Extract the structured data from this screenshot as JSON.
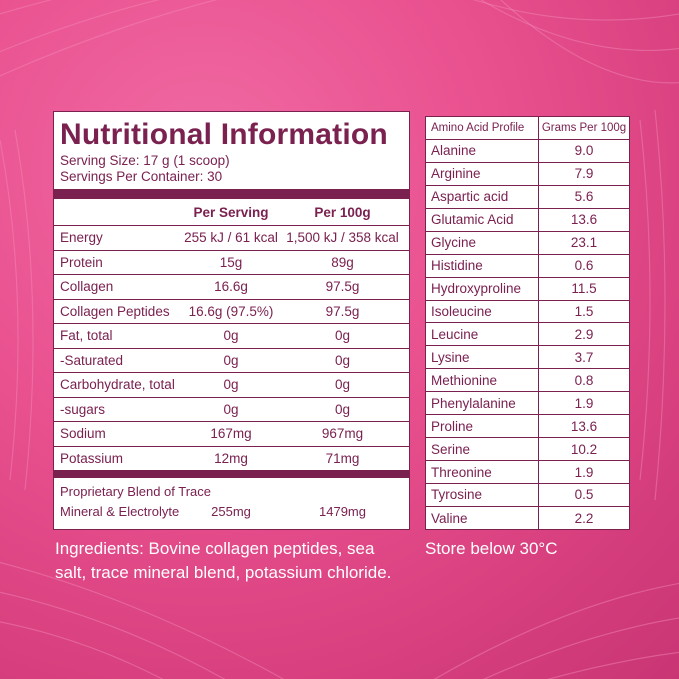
{
  "nutrition": {
    "title": "Nutritional Information",
    "serving_size": "Serving Size: 17 g (1 scoop)",
    "servings_per_container": "Servings Per Container: 30",
    "col_per_serving": "Per Serving",
    "col_per_100g": "Per 100g",
    "rows": [
      {
        "name": "Energy",
        "serving": "255 kJ / 61 kcal",
        "per100": "1,500 kJ / 358 kcal"
      },
      {
        "name": "Protein",
        "serving": "15g",
        "per100": "89g"
      },
      {
        "name": "Collagen",
        "serving": "16.6g",
        "per100": "97.5g"
      },
      {
        "name": "Collagen Peptides",
        "serving": "16.6g (97.5%)",
        "per100": "97.5g"
      },
      {
        "name": "Fat, total",
        "serving": "0g",
        "per100": "0g"
      },
      {
        "name": " -Saturated",
        "serving": "0g",
        "per100": "0g"
      },
      {
        "name": "Carbohydrate, total",
        "serving": "0g",
        "per100": "0g"
      },
      {
        "name": " -sugars",
        "serving": "0g",
        "per100": "0g"
      },
      {
        "name": "Sodium",
        "serving": "167mg",
        "per100": "967mg"
      },
      {
        "name": "Potassium",
        "serving": "12mg",
        "per100": "71mg"
      }
    ],
    "blend_line1": "Proprietary Blend of Trace",
    "blend_line2": "Mineral & Electrolyte",
    "blend_serving": "255mg",
    "blend_per100": "1479mg"
  },
  "amino": {
    "header_name": "Amino Acid Profile",
    "header_value": "Grams Per 100g",
    "rows": [
      {
        "name": "Alanine",
        "value": "9.0"
      },
      {
        "name": "Arginine",
        "value": "7.9"
      },
      {
        "name": "Aspartic acid",
        "value": "5.6"
      },
      {
        "name": "Glutamic Acid",
        "value": "13.6"
      },
      {
        "name": "Glycine",
        "value": "23.1"
      },
      {
        "name": "Histidine",
        "value": "0.6"
      },
      {
        "name": "Hydroxyproline",
        "value": "11.5"
      },
      {
        "name": "Isoleucine",
        "value": "1.5"
      },
      {
        "name": "Leucine",
        "value": "2.9"
      },
      {
        "name": "Lysine",
        "value": "3.7"
      },
      {
        "name": "Methionine",
        "value": "0.8"
      },
      {
        "name": "Phenylalanine",
        "value": "1.9"
      },
      {
        "name": "Proline",
        "value": "13.6"
      },
      {
        "name": "Serine",
        "value": "10.2"
      },
      {
        "name": "Threonine",
        "value": "1.9"
      },
      {
        "name": "Tyrosine",
        "value": "0.5"
      },
      {
        "name": "Valine",
        "value": "2.2"
      }
    ]
  },
  "ingredients_line1": "Ingredients: Bovine collagen peptides, sea",
  "ingredients_line2": "salt, trace mineral blend, potassium chloride.",
  "storage": "Store below 30°C",
  "colors": {
    "brand": "#7a2150",
    "background": "#e24e8a",
    "text_on_bg": "#ffffff"
  }
}
